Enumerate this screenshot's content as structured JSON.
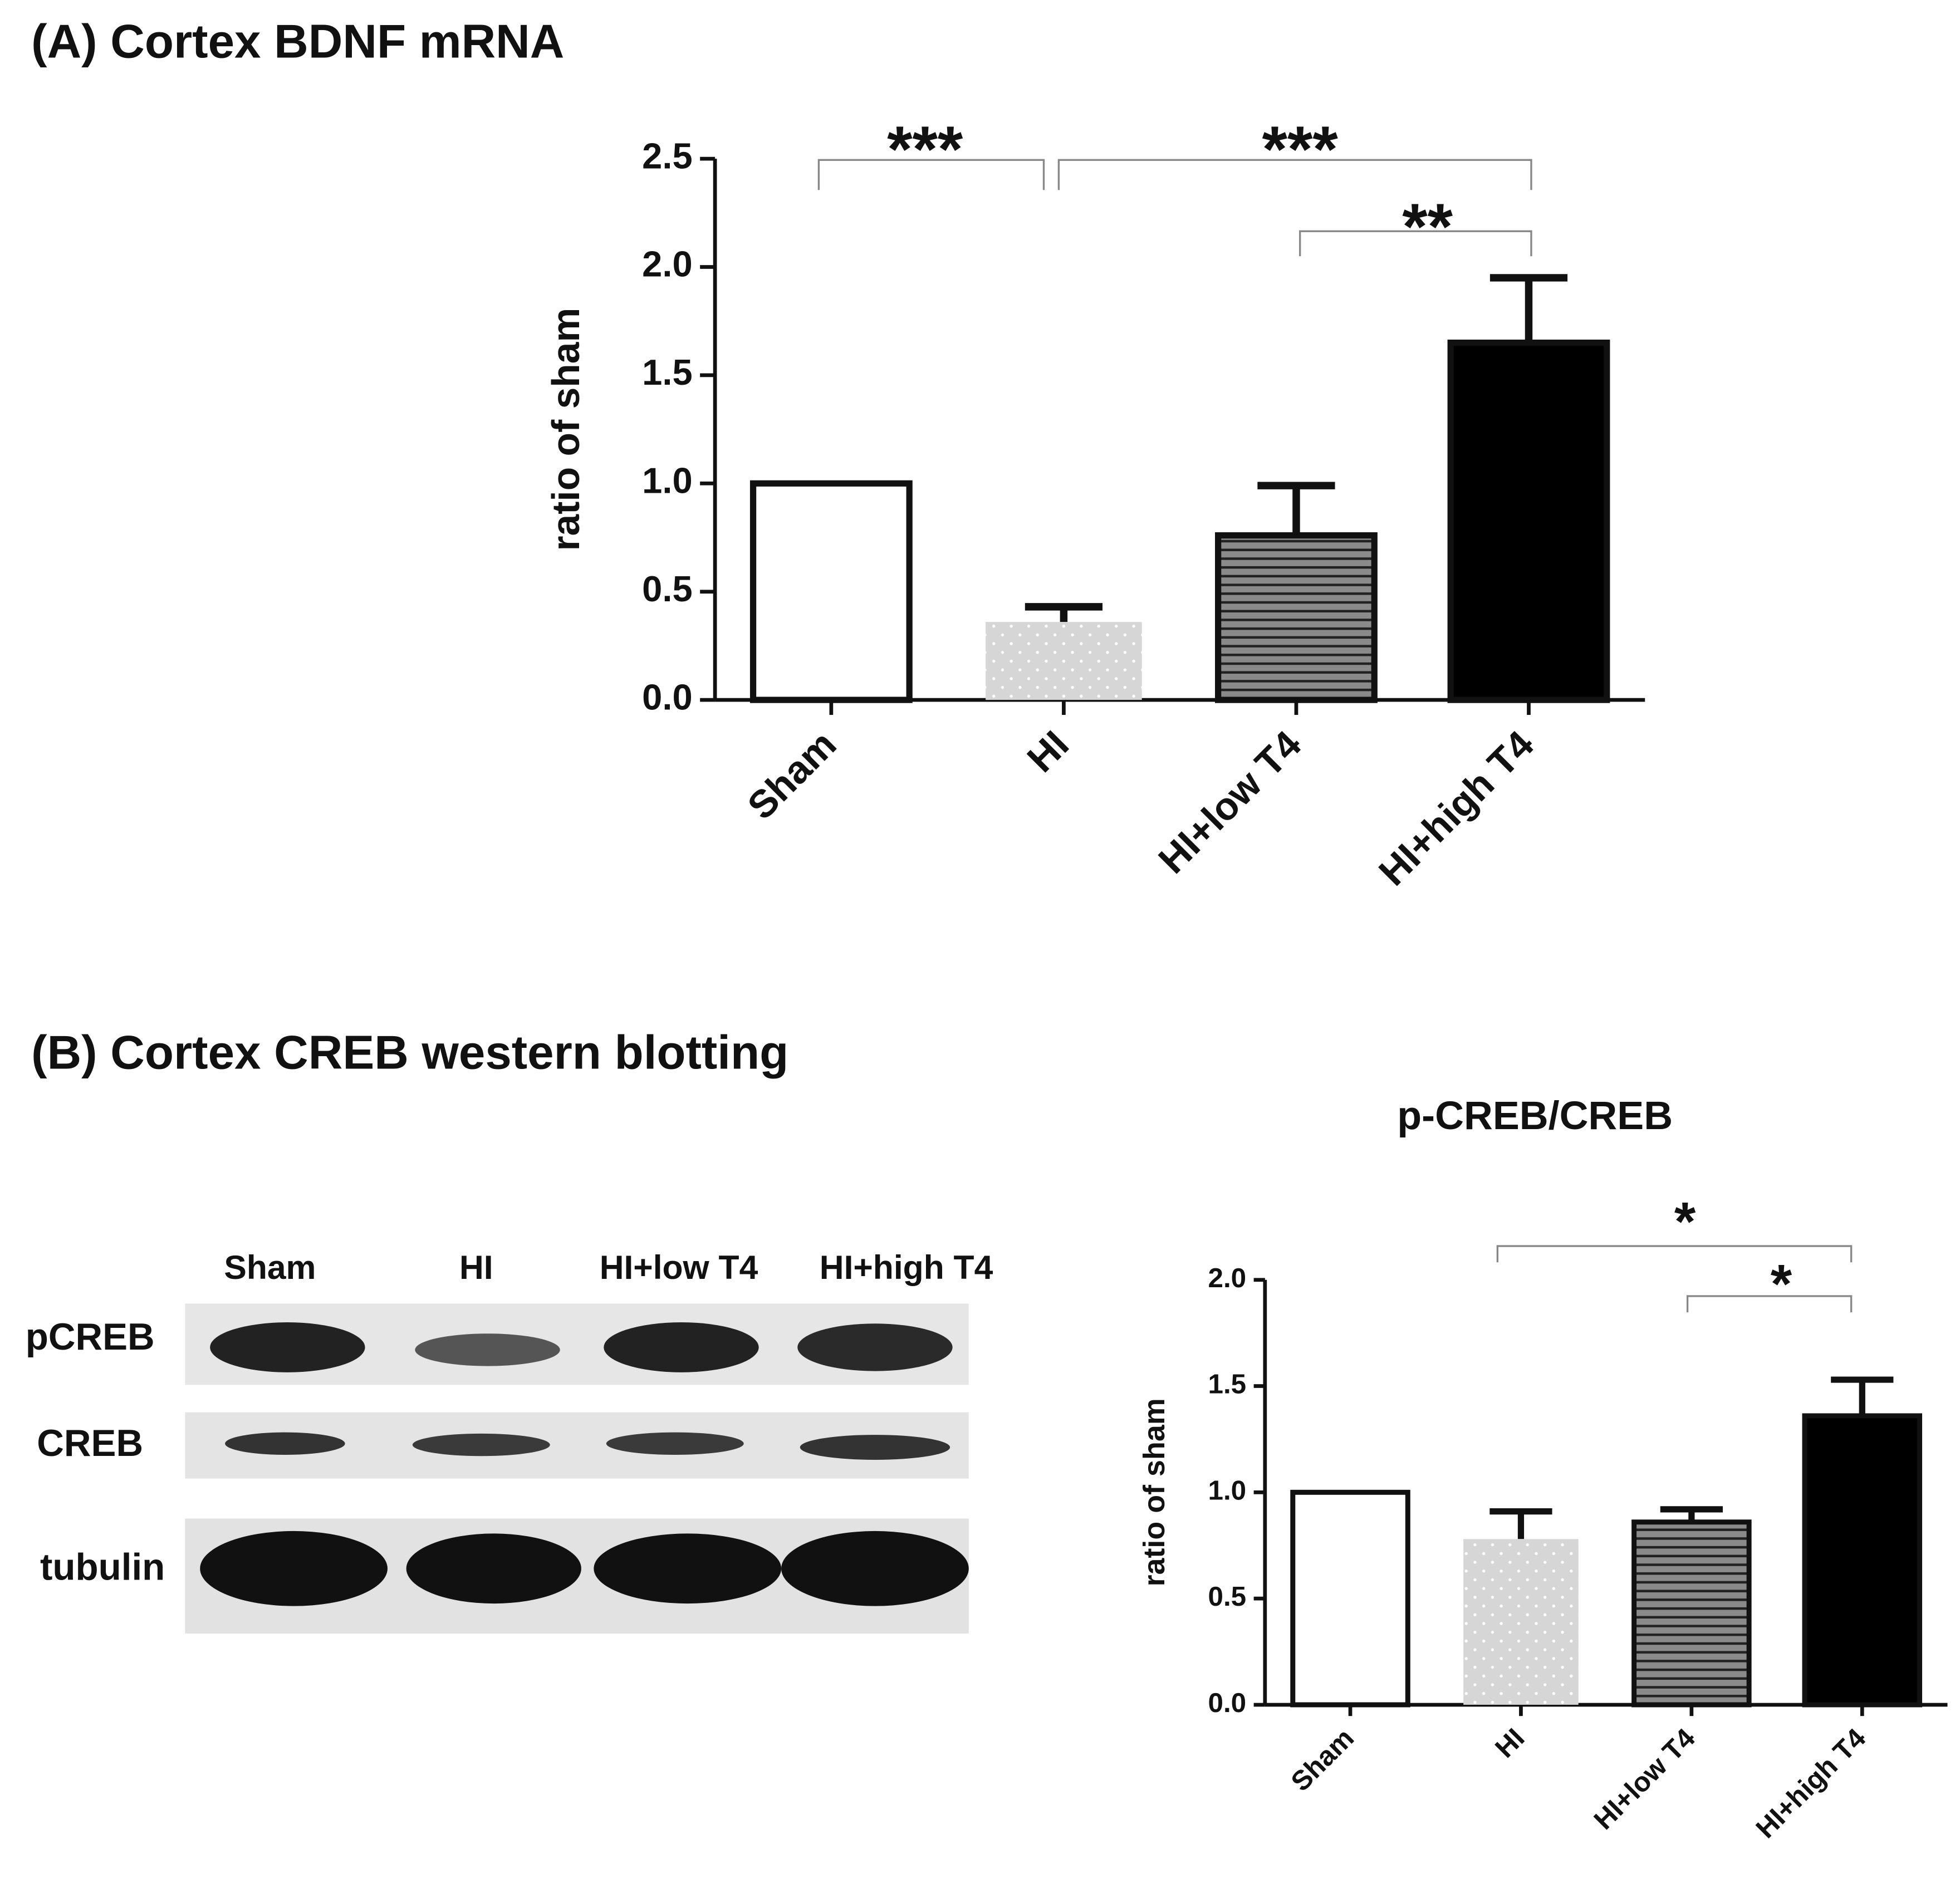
{
  "chart_data": [
    {
      "type": "bar",
      "title": "(A) Cortex BDNF mRNA",
      "ylabel": "ratio of sham",
      "categories": [
        "Sham",
        "HI",
        "HI+low T4",
        "HI+high T4"
      ],
      "values": [
        1.0,
        0.36,
        0.76,
        1.65
      ],
      "errors": [
        0,
        0.07,
        0.23,
        0.3
      ],
      "colors": [
        "#ffffff",
        "#d6d6d6",
        "#8a8a8a",
        "#000000"
      ],
      "ylim": [
        0,
        2.5
      ],
      "yticks": [
        {
          "value": 0,
          "label": "0.0"
        },
        0.5,
        {
          "value": 1,
          "label": "1.0"
        },
        1.5,
        {
          "value": 2,
          "label": "2.0"
        },
        2.5
      ],
      "annotations": [
        {
          "text": "***",
          "between": [
            "Sham",
            "HI"
          ]
        },
        {
          "text": "***",
          "between": [
            "HI",
            "HI+high T4"
          ]
        },
        {
          "text": "**",
          "between": [
            "HI+low T4",
            "HI+high T4"
          ]
        }
      ]
    },
    {
      "type": "bar",
      "title": "p-CREB/CREB",
      "ylabel": "ratio of sham",
      "categories": [
        "Sham",
        "HI",
        "HI+low T4",
        "HI+high T4"
      ],
      "values": [
        1.0,
        0.78,
        0.86,
        1.36
      ],
      "errors": [
        0,
        0.13,
        0.06,
        0.17
      ],
      "colors": [
        "#ffffff",
        "#d6d6d6",
        "#8a8a8a",
        "#000000"
      ],
      "ylim": [
        0,
        2.0
      ],
      "yticks": [
        {
          "value": 0,
          "label": "0.0"
        },
        0.5,
        {
          "value": 1,
          "label": "1.0"
        },
        1.5,
        {
          "value": 2,
          "label": "2.0"
        }
      ],
      "annotations": [
        {
          "text": "*",
          "between": [
            "HI",
            "HI+high T4"
          ]
        },
        {
          "text": "*",
          "between": [
            "HI+low T4",
            "HI+high T4"
          ]
        }
      ]
    }
  ],
  "blot": {
    "title": "(B) Cortex CREB western blotting",
    "lanes": [
      "Sham",
      "HI",
      "HI+low T4",
      "HI+high T4"
    ],
    "rows": [
      "pCREB",
      "CREB",
      "tubulin"
    ]
  }
}
